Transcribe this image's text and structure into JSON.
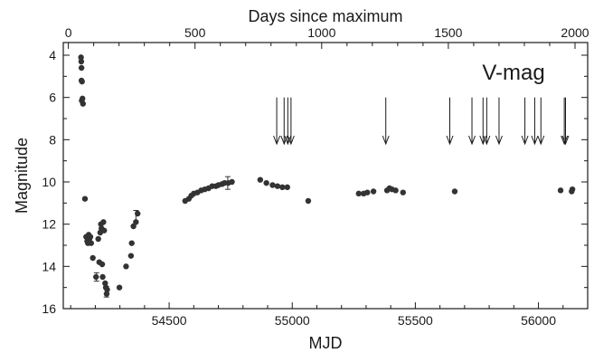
{
  "chart_data": {
    "type": "scatter",
    "xlabel": "MJD",
    "x2label": "Days since maximum",
    "ylabel": "Magnitude",
    "annotation": "V-mag",
    "xlim": [
      54070,
      56200
    ],
    "x2lim": [
      -20,
      2050
    ],
    "ylim": [
      16,
      3.4
    ],
    "y_inverted": true,
    "x_ticks": [
      "54500",
      "55000",
      "55500",
      "56000"
    ],
    "x2_ticks": [
      "0",
      "500",
      "1000",
      "1500",
      "2000"
    ],
    "y_ticks": [
      "4",
      "6",
      "8",
      "10",
      "12",
      "14",
      "16"
    ],
    "marker_color": "#333333",
    "points": [
      {
        "x": 54142,
        "y": 4.1
      },
      {
        "x": 54143,
        "y": 4.3
      },
      {
        "x": 54144,
        "y": 4.6
      },
      {
        "x": 54144,
        "y": 5.2
      },
      {
        "x": 54146,
        "y": 5.25
      },
      {
        "x": 54145,
        "y": 6.15
      },
      {
        "x": 54148,
        "y": 6.05
      },
      {
        "x": 54150,
        "y": 6.3
      },
      {
        "x": 54158,
        "y": 10.8
      },
      {
        "x": 54163,
        "y": 12.6
      },
      {
        "x": 54167,
        "y": 12.8
      },
      {
        "x": 54170,
        "y": 12.9
      },
      {
        "x": 54173,
        "y": 12.5
      },
      {
        "x": 54176,
        "y": 12.7
      },
      {
        "x": 54180,
        "y": 12.6
      },
      {
        "x": 54183,
        "y": 12.9
      },
      {
        "x": 54190,
        "y": 13.6
      },
      {
        "x": 54203,
        "y": 14.5
      },
      {
        "x": 54212,
        "y": 12.7
      },
      {
        "x": 54216,
        "y": 13.8
      },
      {
        "x": 54220,
        "y": 12.4
      },
      {
        "x": 54223,
        "y": 12.0
      },
      {
        "x": 54225,
        "y": 12.2
      },
      {
        "x": 54228,
        "y": 13.9
      },
      {
        "x": 54230,
        "y": 14.5
      },
      {
        "x": 54233,
        "y": 11.9
      },
      {
        "x": 54236,
        "y": 12.3
      },
      {
        "x": 54240,
        "y": 14.8
      },
      {
        "x": 54243,
        "y": 15.0
      },
      {
        "x": 54246,
        "y": 15.3
      },
      {
        "x": 54248,
        "y": 15.1
      },
      {
        "x": 54298,
        "y": 15.0
      },
      {
        "x": 54325,
        "y": 14.0
      },
      {
        "x": 54345,
        "y": 13.5
      },
      {
        "x": 54348,
        "y": 12.9
      },
      {
        "x": 54355,
        "y": 12.1
      },
      {
        "x": 54365,
        "y": 11.9
      },
      {
        "x": 54372,
        "y": 11.5
      },
      {
        "x": 54565,
        "y": 10.9
      },
      {
        "x": 54580,
        "y": 10.8
      },
      {
        "x": 54590,
        "y": 10.65
      },
      {
        "x": 54600,
        "y": 10.55
      },
      {
        "x": 54615,
        "y": 10.5
      },
      {
        "x": 54630,
        "y": 10.4
      },
      {
        "x": 54645,
        "y": 10.35
      },
      {
        "x": 54660,
        "y": 10.3
      },
      {
        "x": 54675,
        "y": 10.2
      },
      {
        "x": 54690,
        "y": 10.2
      },
      {
        "x": 54700,
        "y": 10.15
      },
      {
        "x": 54715,
        "y": 10.1
      },
      {
        "x": 54725,
        "y": 10.05
      },
      {
        "x": 54740,
        "y": 10.05
      },
      {
        "x": 54755,
        "y": 10.0
      },
      {
        "x": 54870,
        "y": 9.9
      },
      {
        "x": 54895,
        "y": 10.05
      },
      {
        "x": 54920,
        "y": 10.15
      },
      {
        "x": 54940,
        "y": 10.2
      },
      {
        "x": 54960,
        "y": 10.25
      },
      {
        "x": 54980,
        "y": 10.25
      },
      {
        "x": 55065,
        "y": 10.9
      },
      {
        "x": 55270,
        "y": 10.55
      },
      {
        "x": 55290,
        "y": 10.55
      },
      {
        "x": 55305,
        "y": 10.5
      },
      {
        "x": 55330,
        "y": 10.45
      },
      {
        "x": 55385,
        "y": 10.4
      },
      {
        "x": 55395,
        "y": 10.3
      },
      {
        "x": 55405,
        "y": 10.35
      },
      {
        "x": 55420,
        "y": 10.4
      },
      {
        "x": 55450,
        "y": 10.5
      },
      {
        "x": 55660,
        "y": 10.45
      },
      {
        "x": 56090,
        "y": 10.4
      },
      {
        "x": 56135,
        "y": 10.45
      },
      {
        "x": 56138,
        "y": 10.35
      }
    ],
    "error_bars": [
      {
        "x": 54205,
        "y": 14.5,
        "err": 0.2
      },
      {
        "x": 54245,
        "y": 15.2,
        "err": 0.25
      },
      {
        "x": 54365,
        "y": 11.6,
        "err": 0.25
      },
      {
        "x": 54738,
        "y": 10.05,
        "err": 0.3
      }
    ],
    "arrows": [
      {
        "x": 54937,
        "y_top": 6.0,
        "y_bottom": 8.2
      },
      {
        "x": 54967,
        "y_top": 6.0,
        "y_bottom": 8.2
      },
      {
        "x": 54982,
        "y_top": 6.0,
        "y_bottom": 8.2
      },
      {
        "x": 54995,
        "y_top": 6.0,
        "y_bottom": 8.2
      },
      {
        "x": 55380,
        "y_top": 6.0,
        "y_bottom": 8.2
      },
      {
        "x": 55640,
        "y_top": 6.0,
        "y_bottom": 8.2
      },
      {
        "x": 55730,
        "y_top": 6.0,
        "y_bottom": 8.2
      },
      {
        "x": 55775,
        "y_top": 6.0,
        "y_bottom": 8.2
      },
      {
        "x": 55790,
        "y_top": 6.0,
        "y_bottom": 8.2
      },
      {
        "x": 55840,
        "y_top": 6.0,
        "y_bottom": 8.2
      },
      {
        "x": 55945,
        "y_top": 6.0,
        "y_bottom": 8.2
      },
      {
        "x": 55985,
        "y_top": 6.0,
        "y_bottom": 8.2
      },
      {
        "x": 56010,
        "y_top": 6.0,
        "y_bottom": 8.2
      },
      {
        "x": 56105,
        "y_top": 6.0,
        "y_bottom": 8.2
      },
      {
        "x": 56110,
        "y_top": 6.0,
        "y_bottom": 8.2
      }
    ]
  }
}
